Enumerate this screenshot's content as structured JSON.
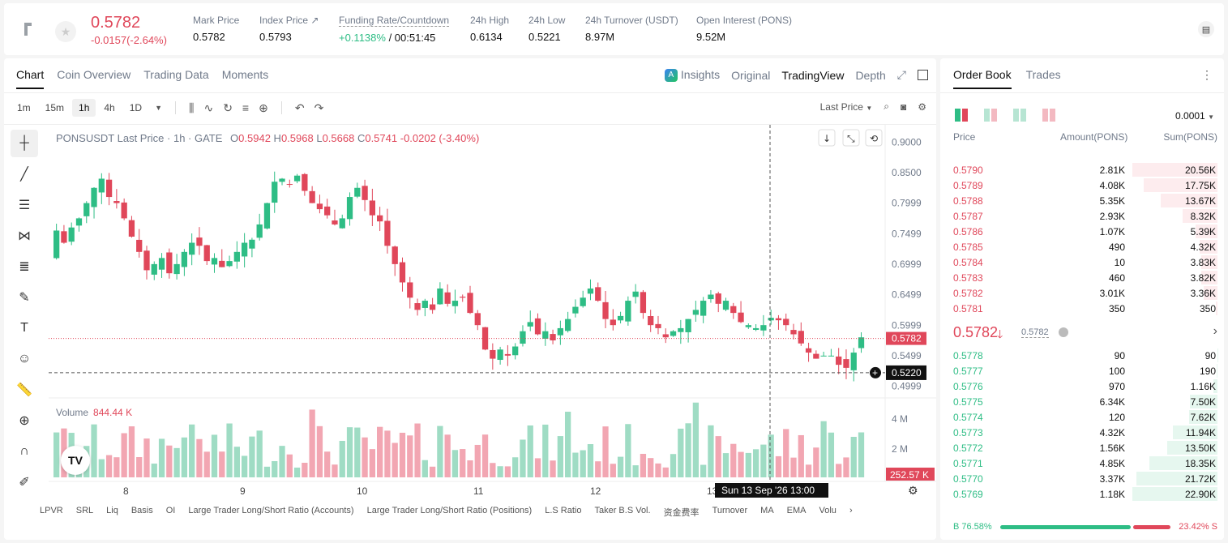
{
  "header": {
    "last_price": "0.5782",
    "change": "-0.0157(-2.64%)",
    "stats": [
      {
        "label": "Mark Price",
        "value": "0.5782"
      },
      {
        "label": "Index Price ↗",
        "value": "0.5793"
      },
      {
        "label": "Funding Rate/Countdown",
        "value_pos": "+0.1138%",
        "value": "/ 00:51:45"
      },
      {
        "label": "24h High",
        "value": "0.6134"
      },
      {
        "label": "24h Low",
        "value": "0.5221"
      },
      {
        "label": "24h Turnover (USDT)",
        "value": "8.97M"
      },
      {
        "label": "Open Interest (PONS)",
        "value": "9.52M"
      }
    ]
  },
  "chart_panel": {
    "tabs": [
      "Chart",
      "Coin Overview",
      "Trading Data",
      "Moments"
    ],
    "right_tabs": {
      "insights": "Insights",
      "original": "Original",
      "tradingview": "TradingView",
      "depth": "Depth"
    },
    "timeframes": [
      "1m",
      "15m",
      "1h",
      "4h",
      "1D"
    ],
    "last_price_select": "Last Price",
    "legend": {
      "title": "PONSUSDT Last Price · 1h · GATE",
      "o_label": "O",
      "o": "0.5942",
      "h_label": "H",
      "h": "0.5968",
      "l_label": "L",
      "l": "0.5668",
      "c_label": "C",
      "c": "0.5741",
      "chg": "-0.0202 (-3.40%)"
    },
    "volume_label": "Volume",
    "volume_value": "844.44 K",
    "indicators": [
      "LPVR",
      "SRL",
      "Liq",
      "Basis",
      "OI",
      "Large Trader Long/Short Ratio (Accounts)",
      "Large Trader Long/Short Ratio (Positions)",
      "L.S Ratio",
      "Taker B.S Vol.",
      "资金费率",
      "Turnover",
      "MA",
      "EMA",
      "Volu"
    ]
  },
  "chart_data": {
    "type": "candlestick",
    "price_axis_ticks": [
      "0.9000",
      "0.8500",
      "0.7999",
      "0.7499",
      "0.6999",
      "0.6499",
      "0.5999",
      "0.5499",
      "0.4999"
    ],
    "volume_axis_ticks": [
      "4 M",
      "2 M"
    ],
    "x_tick_labels": [
      "8",
      "9",
      "10",
      "11",
      "12",
      "13"
    ],
    "current_price_label": "0.5782",
    "crosshair_price_label": "0.5220",
    "crosshair_time_label": "Sun 13 Sep '26   13:00",
    "volume_current_label": "252.57 K",
    "ylim": [
      0.49,
      0.915
    ],
    "closes": [
      0.755,
      0.735,
      0.76,
      0.775,
      0.8,
      0.825,
      0.84,
      0.81,
      0.8,
      0.775,
      0.745,
      0.72,
      0.69,
      0.7,
      0.71,
      0.685,
      0.7,
      0.72,
      0.735,
      0.73,
      0.705,
      0.71,
      0.695,
      0.705,
      0.72,
      0.735,
      0.74,
      0.765,
      0.8,
      0.835,
      0.84,
      0.83,
      0.845,
      0.82,
      0.8,
      0.79,
      0.78,
      0.765,
      0.775,
      0.81,
      0.825,
      0.805,
      0.78,
      0.77,
      0.73,
      0.7,
      0.67,
      0.645,
      0.625,
      0.64,
      0.625,
      0.66,
      0.635,
      0.64,
      0.645,
      0.62,
      0.6,
      0.56,
      0.545,
      0.56,
      0.55,
      0.565,
      0.59,
      0.605,
      0.585,
      0.59,
      0.575,
      0.595,
      0.61,
      0.63,
      0.645,
      0.66,
      0.64,
      0.61,
      0.6,
      0.615,
      0.64,
      0.655,
      0.62,
      0.6,
      0.595,
      0.58,
      0.59,
      0.595,
      0.61,
      0.625,
      0.64,
      0.65,
      0.635,
      0.64,
      0.62,
      0.605,
      0.6,
      0.595,
      0.6,
      0.612,
      0.608,
      0.6,
      0.585,
      0.57,
      0.555,
      0.545,
      0.55,
      0.55,
      0.535,
      0.53,
      0.555,
      0.58
    ]
  },
  "orderbook": {
    "tabs": [
      "Order Book",
      "Trades"
    ],
    "precision": "0.0001",
    "columns": [
      "Price",
      "Amount(PONS)",
      "Sum(PONS)"
    ],
    "asks": [
      {
        "price": "0.5790",
        "amount": "2.81K",
        "sum": "20.56K",
        "depth": 1.0
      },
      {
        "price": "0.5789",
        "amount": "4.08K",
        "sum": "17.75K",
        "depth": 0.863
      },
      {
        "price": "0.5788",
        "amount": "5.35K",
        "sum": "13.67K",
        "depth": 0.665
      },
      {
        "price": "0.5787",
        "amount": "2.93K",
        "sum": "8.32K",
        "depth": 0.405
      },
      {
        "price": "0.5786",
        "amount": "1.07K",
        "sum": "5.39K",
        "depth": 0.262
      },
      {
        "price": "0.5785",
        "amount": "490",
        "sum": "4.32K",
        "depth": 0.21
      },
      {
        "price": "0.5784",
        "amount": "10",
        "sum": "3.83K",
        "depth": 0.186
      },
      {
        "price": "0.5783",
        "amount": "460",
        "sum": "3.82K",
        "depth": 0.186
      },
      {
        "price": "0.5782",
        "amount": "3.01K",
        "sum": "3.36K",
        "depth": 0.163
      },
      {
        "price": "0.5781",
        "amount": "350",
        "sum": "350",
        "depth": 0.017
      }
    ],
    "mid_price": "0.5782",
    "mark_price": "0.5782",
    "bids": [
      {
        "price": "0.5778",
        "amount": "90",
        "sum": "90",
        "depth": 0.004
      },
      {
        "price": "0.5777",
        "amount": "100",
        "sum": "190",
        "depth": 0.008
      },
      {
        "price": "0.5776",
        "amount": "970",
        "sum": "1.16K",
        "depth": 0.051
      },
      {
        "price": "0.5775",
        "amount": "6.34K",
        "sum": "7.50K",
        "depth": 0.327
      },
      {
        "price": "0.5774",
        "amount": "120",
        "sum": "7.62K",
        "depth": 0.333
      },
      {
        "price": "0.5773",
        "amount": "4.32K",
        "sum": "11.94K",
        "depth": 0.521
      },
      {
        "price": "0.5772",
        "amount": "1.56K",
        "sum": "13.50K",
        "depth": 0.589
      },
      {
        "price": "0.5771",
        "amount": "4.85K",
        "sum": "18.35K",
        "depth": 0.801
      },
      {
        "price": "0.5770",
        "amount": "3.37K",
        "sum": "21.72K",
        "depth": 0.948
      },
      {
        "price": "0.5769",
        "amount": "1.18K",
        "sum": "22.90K",
        "depth": 1.0
      }
    ],
    "buy_label": "B 76.58%",
    "sell_label": "23.42% S",
    "buy_ratio": 0.7658
  },
  "colors": {
    "up": "#2ebd85",
    "down": "#e0475a",
    "up_bg": "#e6f7ef",
    "down_bg": "#fdecee"
  }
}
